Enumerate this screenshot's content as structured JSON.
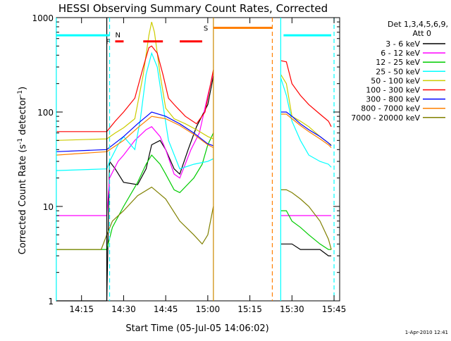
{
  "chart_data": {
    "type": "line",
    "title": "HESSI Observing Summary Count Rates, Corrected",
    "xlabel": "Start Time (05-Jul-05 14:06:02)",
    "ylabel_parts": {
      "main": "Corrected Count Rate (s",
      "sup1": "-1",
      "mid": " detector",
      "sup2": "-1",
      "end": ")"
    },
    "y_scale": "log",
    "ylim": [
      1,
      1000
    ],
    "xlim": [
      "14:06:02",
      "15:47:00"
    ],
    "x_ticks": [
      "14:15",
      "14:30",
      "14:45",
      "15:00",
      "15:15",
      "15:30",
      "15:45"
    ],
    "y_ticks": [
      "1",
      "10",
      "100",
      "1000"
    ],
    "footer": "1-Apr-2010 12:41",
    "legend": {
      "header_line1": "Det 1,3,4,5,6,9,",
      "header_line2": "Att 0",
      "placement": "right"
    },
    "series": [
      {
        "name": "3 - 6 keV",
        "color": "#000000",
        "x": [
          "14:06",
          "14:24",
          "14:25",
          "14:27",
          "14:30",
          "14:35",
          "14:38",
          "14:40",
          "14:43",
          "14:45",
          "14:48",
          "14:50",
          "14:53",
          "14:56",
          "15:00",
          "15:02"
        ],
        "y": [
          1,
          1,
          30,
          25,
          18,
          17,
          25,
          45,
          50,
          40,
          25,
          22,
          40,
          70,
          120,
          240
        ]
      },
      {
        "name": "6 - 12 keV",
        "color": "#ff00ff",
        "x": [
          "14:06",
          "14:20",
          "14:24",
          "14:25",
          "14:28",
          "14:30",
          "14:34",
          "14:38",
          "14:40",
          "14:43",
          "14:45",
          "14:48",
          "14:50",
          "14:54",
          "14:57",
          "15:00",
          "15:02"
        ],
        "y": [
          8,
          8,
          8,
          20,
          30,
          35,
          50,
          65,
          70,
          55,
          40,
          22,
          20,
          40,
          60,
          150,
          260
        ]
      },
      {
        "name": "12 - 25 keV",
        "color": "#00cc00",
        "x": [
          "14:06",
          "14:24",
          "14:26",
          "14:30",
          "14:35",
          "14:38",
          "14:40",
          "14:43",
          "14:45",
          "14:48",
          "14:50",
          "14:55",
          "14:58",
          "15:00",
          "15:02"
        ],
        "y": [
          3.5,
          3.5,
          6,
          10,
          18,
          28,
          35,
          28,
          22,
          15,
          14,
          20,
          28,
          45,
          60
        ]
      },
      {
        "name": "25 - 50 keV",
        "color": "#00ffff",
        "x": [
          "14:06",
          "14:24",
          "14:25",
          "14:28",
          "14:30",
          "14:34",
          "14:36",
          "14:38",
          "14:40",
          "14:42",
          "14:44",
          "14:46",
          "14:50",
          "14:55",
          "15:00",
          "15:02"
        ],
        "y": [
          24,
          25,
          30,
          45,
          55,
          40,
          85,
          250,
          420,
          300,
          120,
          50,
          25,
          28,
          30,
          32
        ]
      },
      {
        "name": "50 - 100 keV",
        "color": "#cccc00",
        "x": [
          "14:06",
          "14:24",
          "14:27",
          "14:30",
          "14:34",
          "14:37",
          "14:39",
          "14:40",
          "14:41",
          "14:43",
          "14:45",
          "14:48",
          "14:52",
          "14:56",
          "15:00",
          "15:02"
        ],
        "y": [
          50,
          52,
          60,
          68,
          85,
          250,
          650,
          900,
          700,
          250,
          110,
          85,
          75,
          65,
          55,
          52
        ]
      },
      {
        "name": "100 - 300 keV",
        "color": "#ff0000",
        "x": [
          "14:06",
          "14:24",
          "14:27",
          "14:30",
          "14:34",
          "14:37",
          "14:39",
          "14:40",
          "14:42",
          "14:44",
          "14:46",
          "14:48",
          "14:52",
          "14:56",
          "14:59",
          "15:01",
          "15:02"
        ],
        "y": [
          62,
          62,
          80,
          100,
          140,
          300,
          480,
          500,
          420,
          250,
          140,
          120,
          90,
          75,
          100,
          200,
          280
        ]
      },
      {
        "name": "300 - 800 keV",
        "color": "#0000ff",
        "x": [
          "14:06",
          "14:24",
          "14:30",
          "14:35",
          "14:40",
          "14:45",
          "14:50",
          "14:55",
          "15:00",
          "15:02"
        ],
        "y": [
          38,
          40,
          55,
          75,
          100,
          90,
          75,
          60,
          46,
          44
        ]
      },
      {
        "name": "800 - 7000 keV",
        "color": "#ff8000",
        "x": [
          "14:06",
          "14:24",
          "14:30",
          "14:35",
          "14:40",
          "14:45",
          "14:50",
          "14:55",
          "15:00",
          "15:02"
        ],
        "y": [
          35,
          38,
          50,
          68,
          90,
          85,
          72,
          58,
          45,
          42
        ]
      },
      {
        "name": "7000 - 20000 keV",
        "color": "#808000",
        "x": [
          "14:06",
          "14:22",
          "14:24",
          "14:26",
          "14:30",
          "14:35",
          "14:40",
          "14:45",
          "14:50",
          "14:55",
          "14:58",
          "15:00",
          "15:02"
        ],
        "y": [
          3.5,
          3.5,
          5,
          7,
          9,
          13,
          16,
          12,
          7,
          5,
          4,
          5,
          10
        ]
      }
    ],
    "second_segment": {
      "x": [
        "15:26",
        "15:28",
        "15:30",
        "15:33",
        "15:36",
        "15:40",
        "15:43",
        "15:44"
      ],
      "series_y": {
        "3 - 6 keV": [
          4,
          4,
          4,
          3.5,
          3.5,
          3.5,
          3,
          3
        ],
        "6 - 12 keV": [
          8,
          8,
          8,
          8,
          8,
          8,
          8,
          8
        ],
        "12 - 25 keV": [
          9,
          9,
          7,
          6,
          5,
          4,
          3.5,
          3.5
        ],
        "25 - 50 keV": [
          230,
          150,
          80,
          50,
          35,
          30,
          28,
          26
        ],
        "50 - 100 keV": [
          250,
          200,
          90,
          80,
          70,
          55,
          47,
          45
        ],
        "100 - 300 keV": [
          350,
          340,
          200,
          150,
          120,
          95,
          80,
          70
        ],
        "300 - 800 keV": [
          100,
          100,
          90,
          75,
          65,
          55,
          47,
          44
        ],
        "800 - 7000 keV": [
          95,
          95,
          85,
          72,
          62,
          52,
          45,
          42
        ],
        "7000 - 20000 keV": [
          15,
          15,
          14,
          12,
          10,
          7,
          4.5,
          3.5
        ]
      }
    },
    "annotations": {
      "night_cyan_1": {
        "label": "",
        "x": [
          "14:06",
          "14:25"
        ],
        "y": 650,
        "color": "#00ffff"
      },
      "night_cyan_2": {
        "label": "",
        "x": [
          "15:27",
          "15:44"
        ],
        "y": 650,
        "color": "#00ffff"
      },
      "saa": {
        "label": "S",
        "x": [
          "15:02",
          "15:23"
        ],
        "y": 780,
        "color": "#ff8000"
      },
      "flare": {
        "label": "F",
        "x": [
          "14:27",
          "14:30"
        ],
        "y": 560,
        "color": "#ff0000"
      },
      "n_marker": {
        "label": "N",
        "x": "14:26"
      },
      "flare_extra_segments": [
        [
          "14:37",
          "14:44"
        ],
        [
          "14:50",
          "14:58"
        ]
      ],
      "dashed_vlines": [
        {
          "x": "14:25",
          "color": "#00ffff"
        },
        {
          "x": "15:23",
          "color": "#ff8000"
        },
        {
          "x": "15:45",
          "color": "#00ffff"
        }
      ],
      "solid_vlines": [
        {
          "x": "14:06",
          "color": "#00ffff"
        },
        {
          "x": "14:24",
          "color": "#000000"
        },
        {
          "x": "15:02",
          "color": "#cc8800"
        },
        {
          "x": "15:26",
          "color": "#00ffff"
        }
      ]
    }
  }
}
